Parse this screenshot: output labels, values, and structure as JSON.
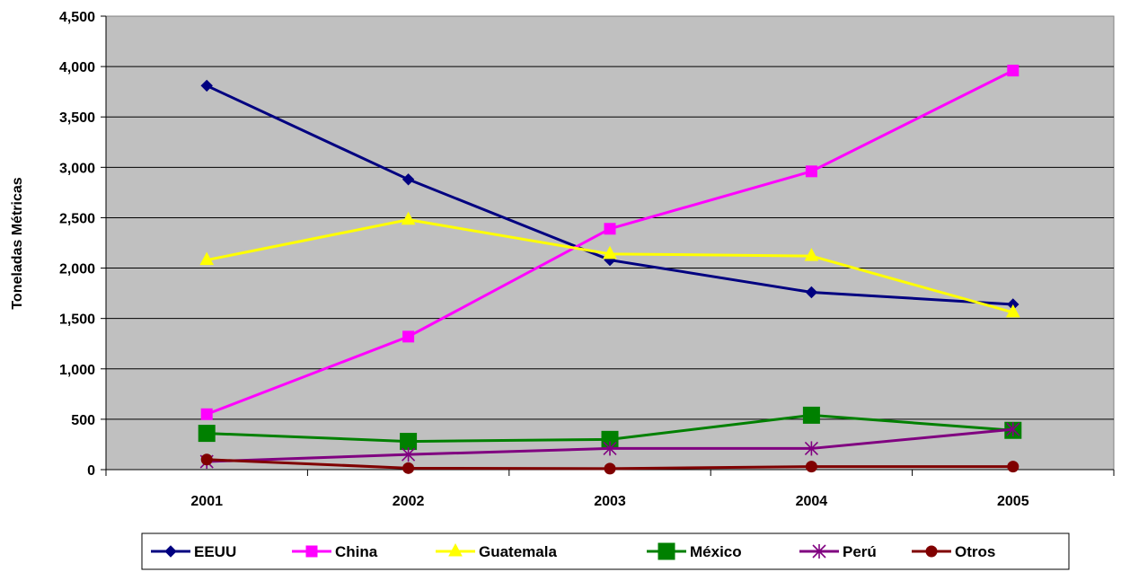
{
  "chart_data": {
    "type": "line",
    "title": "",
    "xlabel": "",
    "ylabel": "Toneladas Métricas",
    "categories": [
      "2001",
      "2002",
      "2003",
      "2004",
      "2005"
    ],
    "ylim": [
      0,
      4500
    ],
    "yticks": [
      "0",
      "500",
      "1,000",
      "1,500",
      "2,000",
      "2,500",
      "3,000",
      "3,500",
      "4,000",
      "4,500"
    ],
    "plot_background": "#c0c0c0",
    "grid": "horizontal",
    "legend_position": "bottom",
    "series": [
      {
        "name": "EEUU",
        "color": "#000080",
        "marker": "diamond",
        "values": [
          3810,
          2880,
          2080,
          1760,
          1640
        ]
      },
      {
        "name": "China",
        "color": "#ff00ff",
        "marker": "square",
        "values": [
          550,
          1320,
          2390,
          2960,
          3960
        ]
      },
      {
        "name": "Guatemala",
        "color": "#ffff00",
        "marker": "triangle",
        "values": [
          2080,
          2480,
          2140,
          2120,
          1560
        ]
      },
      {
        "name": "México",
        "color": "#008000",
        "marker": "big-square",
        "values": [
          360,
          280,
          300,
          540,
          390
        ]
      },
      {
        "name": "Perú",
        "color": "#800080",
        "marker": "asterisk",
        "values": [
          80,
          150,
          210,
          210,
          400
        ]
      },
      {
        "name": "Otros",
        "color": "#800000",
        "marker": "circle",
        "values": [
          100,
          15,
          10,
          30,
          30
        ]
      }
    ]
  }
}
